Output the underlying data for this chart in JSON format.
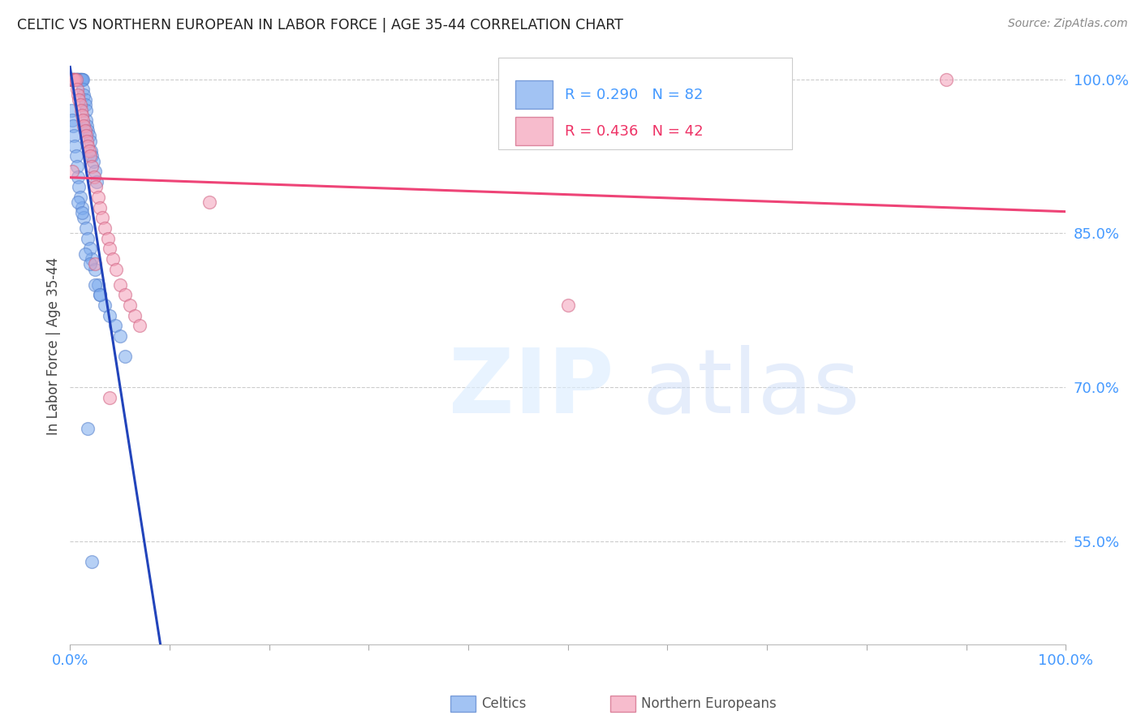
{
  "title": "CELTIC VS NORTHERN EUROPEAN IN LABOR FORCE | AGE 35-44 CORRELATION CHART",
  "source": "Source: ZipAtlas.com",
  "ylabel": "In Labor Force | Age 35-44",
  "xlim": [
    0.0,
    1.0
  ],
  "ylim": [
    0.45,
    1.03
  ],
  "yticks": [
    0.55,
    0.7,
    0.85,
    1.0
  ],
  "ytick_labels": [
    "55.0%",
    "70.0%",
    "85.0%",
    "100.0%"
  ],
  "celtic_color": "#7BAAEE",
  "northern_color": "#F4A0B8",
  "celtic_edge_color": "#5580CC",
  "northern_edge_color": "#D06080",
  "celtic_line_color": "#2244BB",
  "northern_line_color": "#EE4477",
  "celtic_R": 0.29,
  "celtic_N": 82,
  "northern_R": 0.436,
  "northern_N": 42,
  "grid_color": "#CCCCCC",
  "tick_label_color": "#4499FF",
  "celtics_x": [
    0.001,
    0.001,
    0.002,
    0.002,
    0.002,
    0.003,
    0.003,
    0.003,
    0.004,
    0.004,
    0.004,
    0.005,
    0.005,
    0.005,
    0.006,
    0.006,
    0.006,
    0.006,
    0.007,
    0.007,
    0.007,
    0.008,
    0.008,
    0.008,
    0.009,
    0.009,
    0.01,
    0.01,
    0.01,
    0.01,
    0.011,
    0.011,
    0.012,
    0.012,
    0.013,
    0.013,
    0.014,
    0.015,
    0.015,
    0.016,
    0.016,
    0.017,
    0.018,
    0.019,
    0.02,
    0.021,
    0.022,
    0.023,
    0.025,
    0.027,
    0.001,
    0.002,
    0.003,
    0.004,
    0.005,
    0.006,
    0.007,
    0.008,
    0.009,
    0.01,
    0.012,
    0.014,
    0.016,
    0.018,
    0.02,
    0.022,
    0.025,
    0.028,
    0.03,
    0.035,
    0.04,
    0.045,
    0.05,
    0.055,
    0.008,
    0.012,
    0.015,
    0.02,
    0.025,
    0.03,
    0.018,
    0.022
  ],
  "celtics_y": [
    1.0,
    1.0,
    1.0,
    1.0,
    1.0,
    1.0,
    1.0,
    1.0,
    1.0,
    1.0,
    1.0,
    1.0,
    1.0,
    1.0,
    1.0,
    1.0,
    1.0,
    1.0,
    1.0,
    1.0,
    1.0,
    1.0,
    1.0,
    1.0,
    1.0,
    1.0,
    1.0,
    1.0,
    1.0,
    1.0,
    1.0,
    1.0,
    1.0,
    1.0,
    1.0,
    0.99,
    0.985,
    0.98,
    0.975,
    0.97,
    0.96,
    0.955,
    0.95,
    0.945,
    0.94,
    0.93,
    0.925,
    0.92,
    0.91,
    0.9,
    0.97,
    0.96,
    0.955,
    0.945,
    0.935,
    0.925,
    0.915,
    0.905,
    0.895,
    0.885,
    0.875,
    0.865,
    0.855,
    0.845,
    0.835,
    0.825,
    0.815,
    0.8,
    0.79,
    0.78,
    0.77,
    0.76,
    0.75,
    0.73,
    0.88,
    0.87,
    0.83,
    0.82,
    0.8,
    0.79,
    0.66,
    0.53
  ],
  "northern_x": [
    0.001,
    0.002,
    0.003,
    0.004,
    0.005,
    0.006,
    0.007,
    0.008,
    0.009,
    0.01,
    0.011,
    0.012,
    0.013,
    0.014,
    0.015,
    0.016,
    0.017,
    0.018,
    0.019,
    0.02,
    0.022,
    0.024,
    0.026,
    0.028,
    0.03,
    0.032,
    0.035,
    0.038,
    0.04,
    0.043,
    0.046,
    0.05,
    0.055,
    0.06,
    0.065,
    0.07,
    0.14,
    0.5,
    0.88,
    0.002,
    0.025,
    0.04
  ],
  "northern_y": [
    1.0,
    1.0,
    1.0,
    1.0,
    1.0,
    1.0,
    0.99,
    0.985,
    0.98,
    0.975,
    0.97,
    0.965,
    0.96,
    0.955,
    0.95,
    0.945,
    0.94,
    0.935,
    0.93,
    0.925,
    0.915,
    0.905,
    0.895,
    0.885,
    0.875,
    0.865,
    0.855,
    0.845,
    0.835,
    0.825,
    0.815,
    0.8,
    0.79,
    0.78,
    0.77,
    0.76,
    0.88,
    0.78,
    1.0,
    0.91,
    0.82,
    0.69
  ]
}
